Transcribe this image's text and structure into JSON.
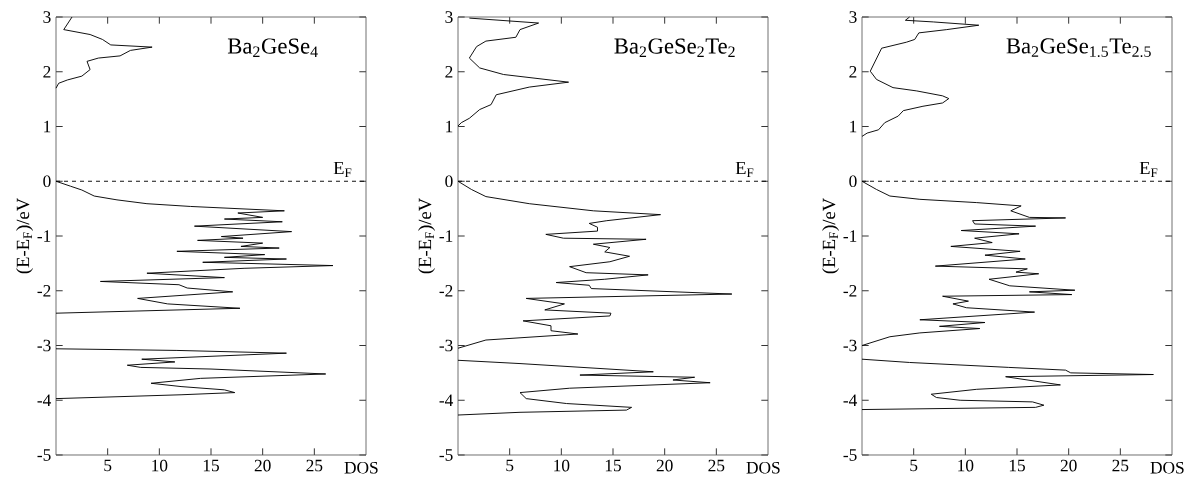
{
  "chart_data": [
    {
      "type": "line",
      "title": "Ba$_{2}$GeSe$_{4}$",
      "xlabel": "DOS",
      "ylabel": "(E-E$_{F}$)/eV",
      "xlim": [
        0,
        30
      ],
      "ylim": [
        -5,
        3
      ],
      "xticks": [
        5,
        10,
        15,
        20,
        25
      ],
      "yticks": [
        -5,
        -4,
        -3,
        -2,
        -1,
        0,
        1,
        2,
        3
      ],
      "ref_lines": [
        {
          "axis": "y",
          "value": 0,
          "label": "E$_{F}$",
          "line_style": "dashed"
        }
      ],
      "series": [
        {
          "color": "#000000",
          "x": [
            1.55,
            0.75,
            3.3,
            4.5,
            5.3,
            9.3,
            7.2,
            6.2,
            4.1,
            3.0,
            3.3,
            2.5,
            1.1,
            0.26,
            0
          ],
          "values": [
            3.0,
            2.77,
            2.68,
            2.59,
            2.49,
            2.45,
            2.39,
            2.29,
            2.25,
            2.19,
            2.04,
            1.92,
            1.85,
            1.79,
            1.7
          ]
        },
        {
          "color": "#000000",
          "x": [
            0,
            1.4,
            2.5,
            3.7,
            5.9,
            8.8,
            13.0,
            22.1,
            17.6,
            20.0,
            16.3,
            21.9,
            13.4,
            22.8,
            16.0,
            18.1,
            13.7,
            20.0,
            17.9,
            21.6,
            11.7,
            20.2,
            16.3,
            22.3,
            14.2,
            26.8,
            18.2,
            8.8,
            16.3,
            4.3,
            11.9,
            12.7,
            17.1,
            7.9,
            10.8,
            17.8,
            0
          ],
          "values": [
            0,
            -0.09,
            -0.16,
            -0.27,
            -0.34,
            -0.41,
            -0.46,
            -0.54,
            -0.58,
            -0.66,
            -0.69,
            -0.74,
            -0.82,
            -0.92,
            -1.01,
            -1.04,
            -1.08,
            -1.13,
            -1.19,
            -1.22,
            -1.28,
            -1.34,
            -1.39,
            -1.42,
            -1.48,
            -1.54,
            -1.59,
            -1.68,
            -1.76,
            -1.83,
            -1.89,
            -1.95,
            -2.02,
            -2.14,
            -2.24,
            -2.32,
            -2.41
          ]
        },
        {
          "color": "#000000",
          "x": [
            0,
            11.7,
            22.3,
            8.3,
            11.5,
            6.9,
            8.2,
            15.0,
            26.1,
            14.0,
            9.2,
            12.1,
            16.3,
            17.3,
            12.1,
            0
          ],
          "values": [
            -3.06,
            -3.09,
            -3.14,
            -3.25,
            -3.3,
            -3.36,
            -3.4,
            -3.43,
            -3.52,
            -3.6,
            -3.69,
            -3.75,
            -3.81,
            -3.86,
            -3.9,
            -3.97
          ]
        }
      ]
    },
    {
      "type": "line",
      "title": "Ba$_{2}$GeSe$_{2}$Te$_{2}$",
      "xlabel": "DOS",
      "ylabel": "(E-E$_{F}$)/eV",
      "xlim": [
        0,
        30
      ],
      "ylim": [
        -5,
        3
      ],
      "xticks": [
        5,
        10,
        15,
        20,
        25
      ],
      "yticks": [
        -5,
        -4,
        -3,
        -2,
        -1,
        0,
        1,
        2,
        3
      ],
      "ref_lines": [
        {
          "axis": "y",
          "value": 0,
          "label": "E$_{F}$",
          "line_style": "dashed"
        }
      ],
      "series": [
        {
          "color": "#000000",
          "x": [
            1.1,
            7.8,
            6.0,
            5.6,
            2.7,
            1.8,
            1.1,
            2.1,
            4.4,
            10.7,
            6.9,
            3.7,
            3.2,
            2.1,
            1.1,
            0.32,
            0
          ],
          "values": [
            2.98,
            2.89,
            2.77,
            2.63,
            2.56,
            2.46,
            2.25,
            2.07,
            1.95,
            1.81,
            1.72,
            1.58,
            1.4,
            1.31,
            1.15,
            1.07,
            1.01
          ]
        },
        {
          "color": "#000000",
          "x": [
            0,
            1.3,
            2.7,
            6.9,
            13.1,
            19.6,
            14.4,
            12.7,
            13.5,
            13.5,
            8.5,
            10.2,
            18.2,
            13.1,
            14.7,
            14.2,
            16.6,
            14.7,
            10.8,
            12.4,
            18.4,
            14.2,
            9.5,
            12.7,
            12.9,
            26.5,
            6.6,
            10.3,
            8.4,
            14.8,
            14.7,
            6.3,
            9.0,
            9.0,
            11.6,
            2.7,
            0
          ],
          "values": [
            0,
            -0.15,
            -0.28,
            -0.41,
            -0.54,
            -0.61,
            -0.72,
            -0.77,
            -0.84,
            -0.91,
            -0.97,
            -1.04,
            -1.06,
            -1.15,
            -1.21,
            -1.29,
            -1.37,
            -1.47,
            -1.56,
            -1.67,
            -1.71,
            -1.79,
            -1.85,
            -1.9,
            -1.96,
            -2.06,
            -2.14,
            -2.24,
            -2.35,
            -2.41,
            -2.46,
            -2.55,
            -2.64,
            -2.73,
            -2.79,
            -2.9,
            -3.05
          ]
        },
        {
          "color": "#000000",
          "x": [
            0,
            6.0,
            18.9,
            11.8,
            22.9,
            20.8,
            24.4,
            10.8,
            6.0,
            6.6,
            10.5,
            16.8,
            16.3,
            6.0,
            0
          ],
          "values": [
            -3.27,
            -3.33,
            -3.48,
            -3.54,
            -3.58,
            -3.63,
            -3.68,
            -3.78,
            -3.86,
            -3.97,
            -4.06,
            -4.13,
            -4.18,
            -4.22,
            -4.27
          ]
        }
      ]
    },
    {
      "type": "line",
      "title": "Ba$_{2}$GeSe$_{1.5}$Te$_{2.5}$",
      "xlabel": "DOS",
      "ylabel": "(E-E$_{F}$)/eV",
      "xlim": [
        0,
        30
      ],
      "ylim": [
        -5,
        3
      ],
      "xticks": [
        5,
        10,
        15,
        20,
        25
      ],
      "yticks": [
        -5,
        -4,
        -3,
        -2,
        -1,
        0,
        1,
        2,
        3
      ],
      "ref_lines": [
        {
          "axis": "y",
          "value": 0,
          "label": "E$_{F}$",
          "line_style": "dashed"
        }
      ],
      "series": [
        {
          "color": "#000000",
          "x": [
            4.6,
            4.2,
            6.9,
            11.3,
            8.2,
            5.5,
            5.1,
            4.3,
            1.9,
            0.8,
            1.4,
            3.0,
            5.3,
            7.8,
            8.4,
            7.8,
            5.9,
            4.0,
            3.5,
            2.2,
            1.6,
            0.5,
            0
          ],
          "values": [
            3.0,
            2.94,
            2.91,
            2.85,
            2.77,
            2.71,
            2.59,
            2.54,
            2.43,
            2.01,
            1.86,
            1.71,
            1.65,
            1.56,
            1.51,
            1.43,
            1.37,
            1.29,
            1.19,
            1.07,
            0.94,
            0.88,
            0.82
          ]
        },
        {
          "color": "#000000",
          "x": [
            0,
            1.4,
            2.7,
            5.6,
            11.1,
            15.4,
            14.4,
            16.2,
            19.7,
            10.7,
            10.9,
            16.8,
            9.6,
            15.2,
            10.9,
            12.6,
            8.6,
            15.3,
            11.9,
            15.8,
            7.1,
            16.0,
            14.9,
            17.1,
            12.3,
            14.3,
            20.6,
            16.2,
            20.3,
            7.8,
            10.3,
            8.8,
            10.1,
            16.7,
            5.6,
            11.9,
            7.5,
            11.4,
            5.6,
            2.7,
            0
          ],
          "values": [
            0,
            -0.15,
            -0.27,
            -0.33,
            -0.39,
            -0.45,
            -0.54,
            -0.66,
            -0.67,
            -0.72,
            -0.78,
            -0.82,
            -0.9,
            -0.96,
            -1.04,
            -1.12,
            -1.19,
            -1.28,
            -1.35,
            -1.42,
            -1.55,
            -1.6,
            -1.66,
            -1.69,
            -1.79,
            -1.91,
            -1.99,
            -2.02,
            -2.07,
            -2.1,
            -2.19,
            -2.24,
            -2.31,
            -2.39,
            -2.53,
            -2.58,
            -2.65,
            -2.69,
            -2.77,
            -2.84,
            -3.0
          ]
        },
        {
          "color": "#000000",
          "x": [
            0,
            4.6,
            14.2,
            19.7,
            20.2,
            28.2,
            13.9,
            19.2,
            11.1,
            6.7,
            7.2,
            9.5,
            16.5,
            17.6,
            16.8,
            0
          ],
          "values": [
            -3.25,
            -3.31,
            -3.4,
            -3.45,
            -3.5,
            -3.53,
            -3.57,
            -3.72,
            -3.8,
            -3.89,
            -3.95,
            -4.0,
            -4.03,
            -4.09,
            -4.13,
            -4.17
          ]
        }
      ]
    }
  ]
}
